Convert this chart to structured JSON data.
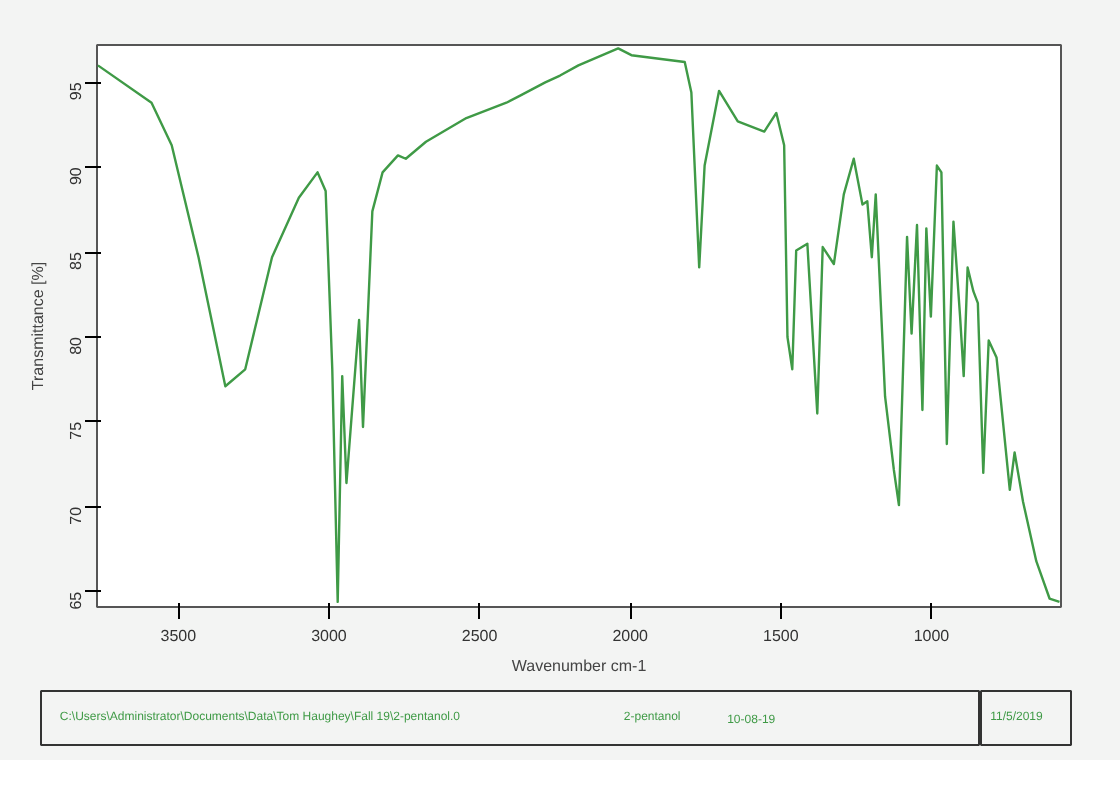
{
  "chart_data": {
    "type": "line",
    "xlabel": "Wavenumber cm-1",
    "ylabel": "Transmittance [%]",
    "xlim": [
      3770,
      570
    ],
    "ylim": [
      64.1,
      97.2
    ],
    "xticks": [
      3500,
      3000,
      2500,
      2000,
      1500,
      1000
    ],
    "yticks": [
      65,
      70,
      75,
      80,
      85,
      90,
      95
    ],
    "grid": false,
    "line_style": "solid",
    "annotations": [
      "C:\\Users\\Administrator\\Documents\\Data\\Tom Haughey\\Fall 19\\2-pentanol.0",
      "2-pentanol",
      "10-08-19",
      "11/5/2019"
    ],
    "series": [
      {
        "color": "#3f9a46",
        "x": [
          3767,
          3589,
          3522,
          3433,
          3344,
          3278,
          3189,
          3100,
          3038,
          3011,
          2989,
          2971,
          2956,
          2942,
          2900,
          2887,
          2856,
          2822,
          2771,
          2745,
          2678,
          2544,
          2411,
          2367,
          2282,
          2233,
          2172,
          2040,
          1996,
          1819,
          1797,
          1771,
          1753,
          1705,
          1643,
          1555,
          1515,
          1489,
          1478,
          1462,
          1449,
          1412,
          1379,
          1361,
          1324,
          1291,
          1258,
          1229,
          1213,
          1198,
          1185,
          1154,
          1125,
          1108,
          1081,
          1066,
          1048,
          1030,
          1017,
          1002,
          982,
          967,
          949,
          927,
          905,
          893,
          880,
          861,
          846,
          828,
          810,
          784,
          740,
          724,
          696,
          652,
          608,
          575
        ],
        "values": [
          96.0,
          93.8,
          91.3,
          84.7,
          77.1,
          78.1,
          84.7,
          88.2,
          89.7,
          88.6,
          78.1,
          64.4,
          77.7,
          71.4,
          81.0,
          74.7,
          87.4,
          89.7,
          90.7,
          90.5,
          91.5,
          92.9,
          93.8,
          94.2,
          95.0,
          95.4,
          96.0,
          97.0,
          96.6,
          96.2,
          94.4,
          84.1,
          90.1,
          94.5,
          92.7,
          92.1,
          93.2,
          91.3,
          80.0,
          78.1,
          85.1,
          85.5,
          75.5,
          85.3,
          84.3,
          88.4,
          90.5,
          87.8,
          88.0,
          84.7,
          88.4,
          76.5,
          72.2,
          70.1,
          85.9,
          80.2,
          86.6,
          75.7,
          86.4,
          81.2,
          90.1,
          89.7,
          73.7,
          86.8,
          81.2,
          77.7,
          84.1,
          82.7,
          82.0,
          72.0,
          79.8,
          78.8,
          71.0,
          73.2,
          70.3,
          66.8,
          64.6,
          64.4
        ]
      }
    ]
  }
}
